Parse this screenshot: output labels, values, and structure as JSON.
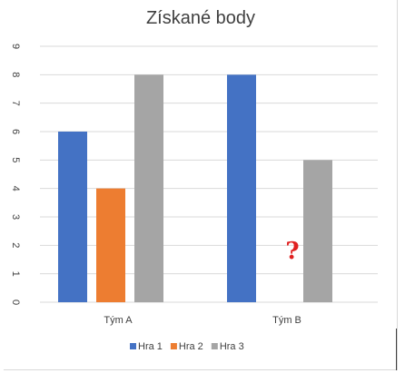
{
  "chart_data": {
    "type": "bar",
    "title": "Získané body",
    "categories": [
      "Tým A",
      "Tým B"
    ],
    "series": [
      {
        "name": "Hra 1",
        "values": [
          6,
          8
        ],
        "color": "#4472c4"
      },
      {
        "name": "Hra 2",
        "values": [
          4,
          null
        ],
        "color": "#ed7d31"
      },
      {
        "name": "Hra 3",
        "values": [
          8,
          5
        ],
        "color": "#a5a5a5"
      }
    ],
    "ylim": [
      0,
      9
    ],
    "yticks": [
      "0",
      "1",
      "2",
      "3",
      "4",
      "5",
      "6",
      "7",
      "8",
      "9"
    ],
    "grid": true,
    "legend": "bottom",
    "annotation": "?",
    "annotation_color": "#e02020"
  }
}
